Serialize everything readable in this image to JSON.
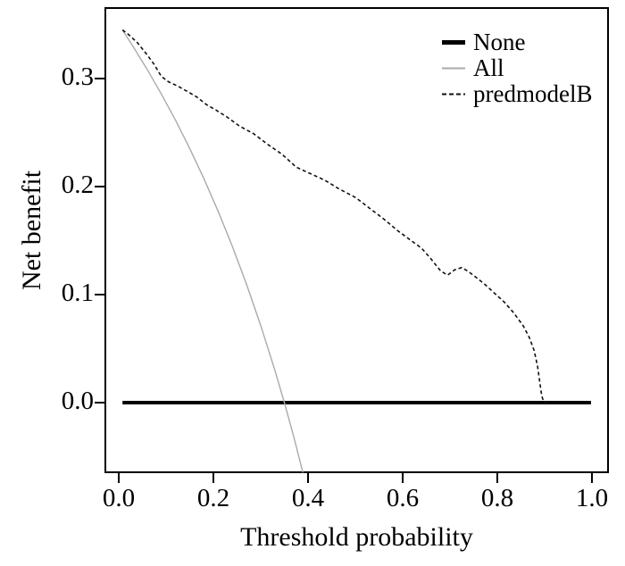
{
  "chart_data": {
    "type": "line",
    "title": "",
    "xlabel": "Threshold probability",
    "ylabel": "Net benefit",
    "x_ticks": [
      0,
      0.2,
      0.4,
      0.6,
      0.8,
      1.0
    ],
    "x_tick_labels": [
      "0.0",
      "0.2",
      "0.4",
      "0.6",
      "0.8",
      "1.0"
    ],
    "y_ticks": [
      0,
      0.1,
      0.2,
      0.3
    ],
    "y_tick_labels": [
      "0.0",
      "0.1",
      "0.2",
      "0.3"
    ],
    "x_range": [
      -0.0302,
      1.0359
    ],
    "y_range": [
      -0.0653,
      0.3661
    ],
    "grid": false,
    "legend_position": "top-right",
    "background_color": "#ffffff",
    "axis_color": "#000000",
    "text_color": "#000000",
    "series": [
      {
        "name": "None",
        "color": "#000000",
        "width": 4,
        "dash": "solid",
        "points": [
          [
            0.008,
            0
          ],
          [
            0.998,
            0
          ]
        ]
      },
      {
        "name": "All",
        "color": "#aaaaaa",
        "width": 1.4,
        "dash": "solid",
        "points": [
          [
            0.008,
            0.3448
          ],
          [
            0.03,
            0.3299
          ],
          [
            0.06,
            0.3085
          ],
          [
            0.09,
            0.2857
          ],
          [
            0.12,
            0.2614
          ],
          [
            0.15,
            0.2353
          ],
          [
            0.18,
            0.2073
          ],
          [
            0.21,
            0.1772
          ],
          [
            0.24,
            0.1447
          ],
          [
            0.27,
            0.1096
          ],
          [
            0.3,
            0.0714
          ],
          [
            0.33,
            0.0299
          ],
          [
            0.35,
            0.0
          ],
          [
            0.37,
            -0.0318
          ],
          [
            0.389,
            -0.0648
          ]
        ]
      },
      {
        "name": "predmodelB",
        "color": "#111111",
        "width": 1.6,
        "dash": "dashed",
        "points": [
          [
            0.008,
            0.345
          ],
          [
            0.02,
            0.341
          ],
          [
            0.04,
            0.333
          ],
          [
            0.06,
            0.322
          ],
          [
            0.075,
            0.313
          ],
          [
            0.09,
            0.302
          ],
          [
            0.105,
            0.297
          ],
          [
            0.125,
            0.293
          ],
          [
            0.145,
            0.288
          ],
          [
            0.165,
            0.283
          ],
          [
            0.185,
            0.276
          ],
          [
            0.205,
            0.271
          ],
          [
            0.23,
            0.264
          ],
          [
            0.255,
            0.256
          ],
          [
            0.285,
            0.249
          ],
          [
            0.315,
            0.239
          ],
          [
            0.345,
            0.23
          ],
          [
            0.375,
            0.218
          ],
          [
            0.405,
            0.212
          ],
          [
            0.435,
            0.206
          ],
          [
            0.465,
            0.198
          ],
          [
            0.5,
            0.19
          ],
          [
            0.53,
            0.18
          ],
          [
            0.56,
            0.17
          ],
          [
            0.59,
            0.159
          ],
          [
            0.615,
            0.151
          ],
          [
            0.64,
            0.143
          ],
          [
            0.66,
            0.133
          ],
          [
            0.68,
            0.122
          ],
          [
            0.695,
            0.118
          ],
          [
            0.71,
            0.123
          ],
          [
            0.725,
            0.125
          ],
          [
            0.74,
            0.121
          ],
          [
            0.755,
            0.116
          ],
          [
            0.775,
            0.109
          ],
          [
            0.795,
            0.101
          ],
          [
            0.815,
            0.093
          ],
          [
            0.835,
            0.083
          ],
          [
            0.855,
            0.071
          ],
          [
            0.868,
            0.06
          ],
          [
            0.878,
            0.048
          ],
          [
            0.885,
            0.034
          ],
          [
            0.89,
            0.018
          ],
          [
            0.894,
            0.006
          ],
          [
            0.898,
            0.001
          ],
          [
            0.908,
            0
          ]
        ]
      }
    ]
  }
}
